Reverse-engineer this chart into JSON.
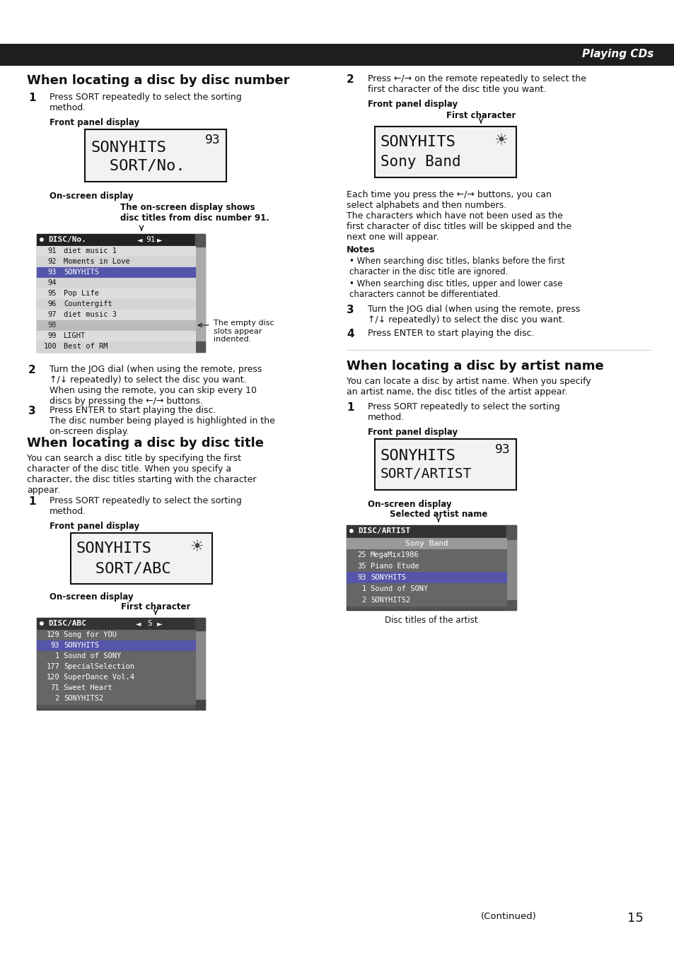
{
  "page_bg": "#ffffff",
  "header_bg": "#1e1e1e",
  "header_text": "Playing CDs",
  "header_text_color": "#ffffff",
  "page_number": "15",
  "continued_text": "(Continued)",
  "section1_title": "When locating a disc by disc number",
  "section1_step1_num": "1",
  "section1_step1": "Press SORT repeatedly to select the sorting\nmethod.",
  "section1_front_panel_label": "Front panel display",
  "section1_display1_line1": "SONYHITS",
  "section1_display1_line2": "  SORT/No.",
  "section1_display1_number": "93",
  "section1_onscreen_label": "On-screen display",
  "section1_annotation1": "The on-screen display shows\ndisc titles from disc number 91.",
  "disc_no_header": "DISC/No.",
  "disc_no_number": "91",
  "disc_no_rows": [
    {
      "num": "91",
      "title": "diet music 1",
      "highlighted": false,
      "empty": false
    },
    {
      "num": "92",
      "title": "Moments in Love",
      "highlighted": false,
      "empty": false
    },
    {
      "num": "93",
      "title": "SONYHITS",
      "highlighted": true,
      "empty": false
    },
    {
      "num": "94",
      "title": "",
      "highlighted": false,
      "empty": false
    },
    {
      "num": "95",
      "title": "Pop Life",
      "highlighted": false,
      "empty": false
    },
    {
      "num": "96",
      "title": "Countergift",
      "highlighted": false,
      "empty": false
    },
    {
      "num": "97",
      "title": "diet music 3",
      "highlighted": false,
      "empty": false
    },
    {
      "num": "98",
      "title": "",
      "highlighted": false,
      "empty": true
    },
    {
      "num": "99",
      "title": "LIGHT",
      "highlighted": false,
      "empty": false
    },
    {
      "num": "100",
      "title": "Best of RM",
      "highlighted": false,
      "empty": false
    }
  ],
  "annotation_empty": "The empty disc\nslots appear\nindented.",
  "section1_step2_num": "2",
  "section1_step2": "Turn the JOG dial (when using the remote, press\n↑/↓ repeatedly) to select the disc you want.\nWhen using the remote, you can skip every 10\ndiscs by pressing the ←/→ buttons.",
  "section1_step3_num": "3",
  "section1_step3": "Press ENTER to start playing the disc.\nThe disc number being played is highlighted in the\non-screen display.",
  "section2_title": "When locating a disc by disc title",
  "section2_intro": "You can search a disc title by specifying the first\ncharacter of the disc title. When you specify a\ncharacter, the disc titles starting with the character\nappear.",
  "section2_step1_num": "1",
  "section2_step1": "Press SORT repeatedly to select the sorting\nmethod.",
  "section2_front_panel_label": "Front panel display",
  "section2_display_line1": "SONYHITS",
  "section2_display_line2": "  SORT/ABC",
  "section2_onscreen_label": "On-screen display",
  "section2_first_char_label": "First character",
  "disc_abc_header": "DISC/ABC",
  "disc_abc_char": "S",
  "disc_abc_rows": [
    {
      "num": "129",
      "title": "Song for YOU",
      "highlighted": false
    },
    {
      "num": "93",
      "title": "SONYHITS",
      "highlighted": true
    },
    {
      "num": "1",
      "title": "Sound of SONY",
      "highlighted": false
    },
    {
      "num": "177",
      "title": "SpecialSelection",
      "highlighted": false
    },
    {
      "num": "120",
      "title": "SuperDance Vol.4",
      "highlighted": false
    },
    {
      "num": "71",
      "title": "Sweet Heart",
      "highlighted": false
    },
    {
      "num": "2",
      "title": "SONYHITS2",
      "highlighted": false
    }
  ],
  "right_step2_num": "2",
  "right_step2_text": "Press ←/→ on the remote repeatedly to select the\nfirst character of the disc title you want.",
  "right_front_panel_label": "Front panel display",
  "right_first_char_label": "First character",
  "right_display_line1": "SONYHITS",
  "right_display_line2": "Sony Band",
  "right_body_text": "Each time you press the ←/→ buttons, you can\nselect alphabets and then numbers.\nThe characters which have not been used as the\nfirst character of disc titles will be skipped and the\nnext one will appear.",
  "notes_title": "Notes",
  "notes": [
    "When searching disc titles, blanks before the first\ncharacter in the disc title are ignored.",
    "When searching disc titles, upper and lower case\ncharacters cannot be differentiated."
  ],
  "right_step3_num": "3",
  "right_step3": "Turn the JOG dial (when using the remote, press\n↑/↓ repeatedly) to select the disc you want.",
  "right_step4_num": "4",
  "right_step4": "Press ENTER to start playing the disc.",
  "section3_title": "When locating a disc by artist name",
  "section3_intro": "You can locate a disc by artist name. When you specify\nan artist name, the disc titles of the artist appear.",
  "section3_step1_num": "1",
  "section3_step1": "Press SORT repeatedly to select the sorting\nmethod.",
  "section3_front_panel_label": "Front panel display",
  "section3_display_line1": "SONYHITS",
  "section3_display_line2": "SORT/ARTIST",
  "section3_display_number": "93",
  "section3_onscreen_label": "On-screen display",
  "section3_selected_label": "Selected artist name",
  "disc_artist_header": "DISC/ARTIST",
  "disc_artist_selected": "Sony Band",
  "disc_artist_rows": [
    {
      "num": "25",
      "title": "MegaMix1986",
      "highlighted": false
    },
    {
      "num": "35",
      "title": "Piano Etude",
      "highlighted": false
    },
    {
      "num": "93",
      "title": "SONYHITS",
      "highlighted": true
    },
    {
      "num": "1",
      "title": "Sound of SONY",
      "highlighted": false
    },
    {
      "num": "2",
      "title": "SONYHITS2",
      "highlighted": false
    }
  ],
  "section3_disc_titles_label": "Disc titles of the artist"
}
